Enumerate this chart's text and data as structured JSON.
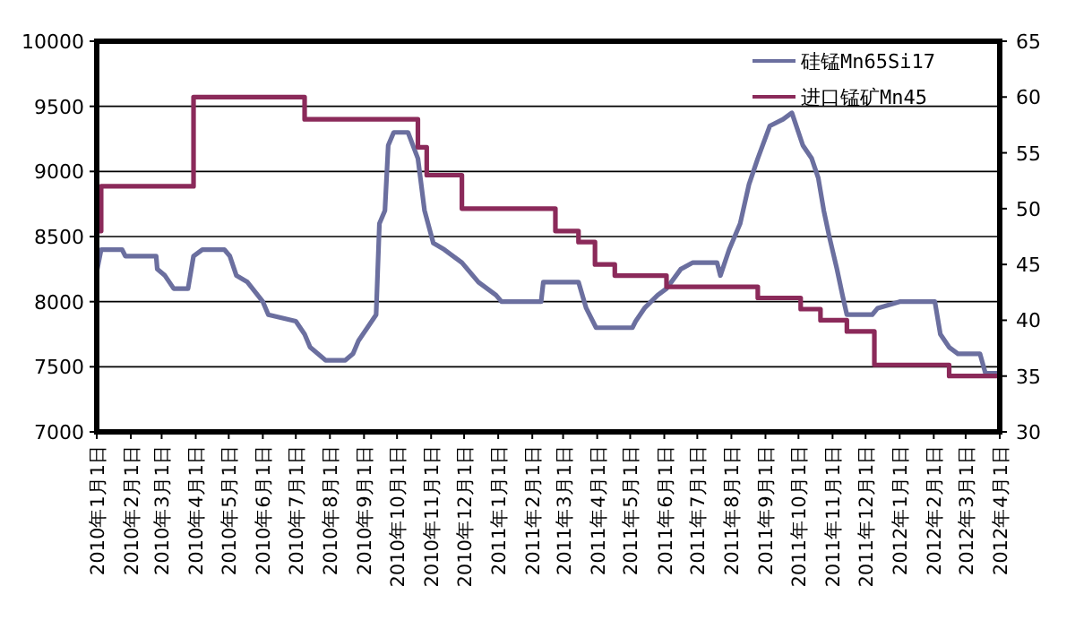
{
  "chart_data": {
    "type": "line",
    "grid": "y",
    "legend": "top right",
    "xlim": [
      "2010-01-01",
      "2012-04-01"
    ],
    "xticks": [
      {
        "value": "2010-01-01",
        "label": "2010年1月1日"
      },
      {
        "value": "2010-02-01",
        "label": "2010年2月1日"
      },
      {
        "value": "2010-03-01",
        "label": "2010年3月1日"
      },
      {
        "value": "2010-04-01",
        "label": "2010年4月1日"
      },
      {
        "value": "2010-05-01",
        "label": "2010年5月1日"
      },
      {
        "value": "2010-06-01",
        "label": "2010年6月1日"
      },
      {
        "value": "2010-07-01",
        "label": "2010年7月1日"
      },
      {
        "value": "2010-08-01",
        "label": "2010年8月1日"
      },
      {
        "value": "2010-09-01",
        "label": "2010年9月1日"
      },
      {
        "value": "2010-10-01",
        "label": "2010年10月1日"
      },
      {
        "value": "2010-11-01",
        "label": "2010年11月1日"
      },
      {
        "value": "2010-12-01",
        "label": "2010年12月1日"
      },
      {
        "value": "2011-01-01",
        "label": "2011年1月1日"
      },
      {
        "value": "2011-02-01",
        "label": "2011年2月1日"
      },
      {
        "value": "2011-03-01",
        "label": "2011年3月1日"
      },
      {
        "value": "2011-04-01",
        "label": "2011年4月1日"
      },
      {
        "value": "2011-05-01",
        "label": "2011年5月1日"
      },
      {
        "value": "2011-06-01",
        "label": "2011年6月1日"
      },
      {
        "value": "2011-07-01",
        "label": "2011年7月1日"
      },
      {
        "value": "2011-08-01",
        "label": "2011年8月1日"
      },
      {
        "value": "2011-09-01",
        "label": "2011年9月1日"
      },
      {
        "value": "2011-10-01",
        "label": "2011年10月1日"
      },
      {
        "value": "2011-11-01",
        "label": "2011年11月1日"
      },
      {
        "value": "2011-12-01",
        "label": "2011年12月1日"
      },
      {
        "value": "2012-01-01",
        "label": "2012年1月1日"
      },
      {
        "value": "2012-02-01",
        "label": "2012年2月1日"
      },
      {
        "value": "2012-03-01",
        "label": "2012年3月1日"
      },
      {
        "value": "2012-04-01",
        "label": "2012年4月1日"
      }
    ],
    "ylim": [
      7000,
      10000
    ],
    "yticks": [
      7000,
      7500,
      8000,
      8500,
      9000,
      9500,
      10000
    ],
    "y2lim": [
      30,
      65
    ],
    "y2ticks": [
      30,
      35,
      40,
      45,
      50,
      55,
      60,
      65
    ],
    "series": [
      {
        "name": "硅锰Mn65Si17",
        "color": "#6b6f9f",
        "type": "line",
        "x": [
          "2010-01-01",
          "2010-01-05",
          "2010-01-24",
          "2010-01-27",
          "2010-02-24",
          "2010-02-25",
          "2010-03-04",
          "2010-03-12",
          "2010-03-25",
          "2010-03-30",
          "2010-04-07",
          "2010-04-27",
          "2010-05-02",
          "2010-05-08",
          "2010-05-18",
          "2010-06-01",
          "2010-06-06",
          "2010-07-01",
          "2010-07-09",
          "2010-07-14",
          "2010-07-28",
          "2010-08-15",
          "2010-08-22",
          "2010-08-27",
          "2010-09-04",
          "2010-09-12",
          "2010-09-15",
          "2010-09-20",
          "2010-09-23",
          "2010-09-28",
          "2010-10-11",
          "2010-10-20",
          "2010-10-26",
          "2010-11-03",
          "2010-11-13",
          "2010-11-29",
          "2010-12-14",
          "2010-12-30",
          "2011-01-04",
          "2011-02-09",
          "2011-02-11",
          "2011-03-15",
          "2011-03-22",
          "2011-03-31",
          "2011-05-03",
          "2011-05-06",
          "2011-05-14",
          "2011-05-26",
          "2011-06-03",
          "2011-06-16",
          "2011-06-27",
          "2011-07-19",
          "2011-07-22",
          "2011-07-30",
          "2011-08-09",
          "2011-08-17",
          "2011-08-25",
          "2011-09-05",
          "2011-09-17",
          "2011-09-25",
          "2011-09-27",
          "2011-10-05",
          "2011-10-13",
          "2011-10-19",
          "2011-10-24",
          "2011-10-29",
          "2011-11-05",
          "2011-11-10",
          "2011-11-14",
          "2011-12-07",
          "2011-12-12",
          "2012-01-01",
          "2012-02-02",
          "2012-02-07",
          "2012-02-15",
          "2012-02-23",
          "2012-03-14",
          "2012-03-19",
          "2012-04-01"
        ],
        "values": [
          8230,
          8400,
          8400,
          8350,
          8350,
          8250,
          8200,
          8100,
          8100,
          8350,
          8400,
          8400,
          8350,
          8200,
          8150,
          8000,
          7900,
          7850,
          7750,
          7650,
          7550,
          7550,
          7600,
          7700,
          7800,
          7900,
          8600,
          8700,
          9200,
          9300,
          9300,
          9100,
          8700,
          8450,
          8400,
          8300,
          8150,
          8050,
          8000,
          8000,
          8150,
          8150,
          7950,
          7800,
          7800,
          7850,
          7950,
          8050,
          8100,
          8250,
          8300,
          8300,
          8200,
          8400,
          8600,
          8900,
          9100,
          9350,
          9400,
          9450,
          9400,
          9200,
          9100,
          8950,
          8700,
          8500,
          8250,
          8050,
          7900,
          7900,
          7950,
          8000,
          8000,
          7750,
          7650,
          7600,
          7600,
          7450,
          7450
        ]
      },
      {
        "name": "进口锰矿Mn45",
        "color": "#8b2a5a",
        "type": "step",
        "axis": "y2",
        "x": [
          "2010-01-01",
          "2010-01-05",
          "2010-03-30",
          "2010-07-09",
          "2010-10-20",
          "2010-10-28",
          "2010-11-29",
          "2011-02-22",
          "2011-03-15",
          "2011-03-30",
          "2011-04-17",
          "2011-06-03",
          "2011-08-25",
          "2011-10-03",
          "2011-10-21",
          "2011-11-14",
          "2011-12-09",
          "2012-02-15",
          "2012-04-01"
        ],
        "values": [
          48,
          52,
          60,
          58,
          55.5,
          53,
          50,
          48,
          47,
          45,
          44,
          43,
          42,
          41,
          40,
          39,
          36,
          35,
          35
        ]
      }
    ]
  }
}
